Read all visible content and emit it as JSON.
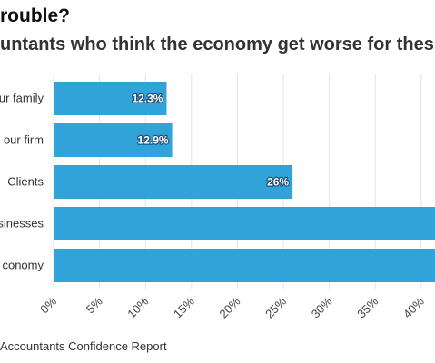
{
  "title": "rouble?",
  "subtitle": "untants who think the economy get worse for thes",
  "source": "Accountants Confidence Report",
  "colors": {
    "bar": "#30a3d8",
    "grid": "#e3e3e3"
  },
  "chart_data": {
    "type": "bar",
    "orientation": "horizontal",
    "categories": [
      "ur family",
      "our firm",
      "Clients",
      "sinesses",
      "conomy"
    ],
    "values": [
      12.3,
      12.9,
      26,
      null,
      null
    ],
    "value_labels": [
      "12.3%",
      "12.9%",
      "26%",
      "",
      ""
    ],
    "xlim": [
      0,
      41.5
    ],
    "xticks": [
      0,
      5,
      10,
      15,
      20,
      25,
      30,
      35,
      40
    ],
    "xtick_labels": [
      "0%",
      "5%",
      "10%",
      "15%",
      "20%",
      "25%",
      "30%",
      "35%",
      "40%"
    ],
    "grid": true,
    "note": ""
  }
}
